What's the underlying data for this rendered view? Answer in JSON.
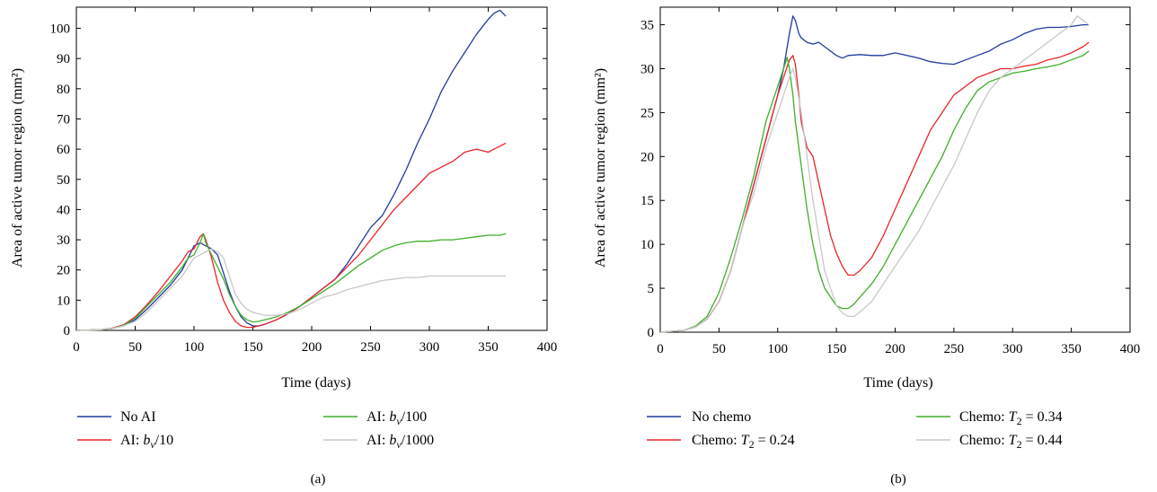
{
  "chart_data": [
    {
      "type": "line",
      "panel_label": "(a)",
      "xlabel": "Time (days)",
      "ylabel": "Area of active tumor region (mm²)",
      "xlim": [
        0,
        400
      ],
      "ylim": [
        0,
        107
      ],
      "xticks": [
        0,
        50,
        100,
        150,
        200,
        250,
        300,
        350,
        400
      ],
      "yticks": [
        0,
        10,
        20,
        30,
        40,
        50,
        60,
        70,
        80,
        90,
        100
      ],
      "grid": false,
      "legend_position": "bottom",
      "series": [
        {
          "name": "No AI",
          "color": "#1f3a9e",
          "x": [
            0,
            20,
            30,
            40,
            50,
            60,
            70,
            80,
            90,
            95,
            100,
            105,
            110,
            115,
            120,
            125,
            130,
            135,
            140,
            145,
            150,
            155,
            160,
            170,
            180,
            190,
            200,
            210,
            220,
            230,
            240,
            250,
            260,
            270,
            280,
            290,
            300,
            310,
            320,
            330,
            340,
            350,
            355,
            360,
            365
          ],
          "y": [
            0,
            0.2,
            0.6,
            1.5,
            3.5,
            7,
            11,
            15,
            20,
            24,
            28,
            29,
            28,
            27,
            25,
            19,
            13,
            8,
            4.5,
            2.5,
            1.5,
            1.5,
            2,
            3.5,
            5.5,
            8,
            11,
            14,
            17,
            22,
            28,
            34,
            38,
            45,
            53,
            62,
            70,
            79,
            86,
            92,
            98,
            103,
            105,
            106,
            104
          ]
        },
        {
          "name": "AI: b_v/10",
          "label_text": "AI: ",
          "label_sub": "/10",
          "color": "#e8252a",
          "x": [
            0,
            20,
            30,
            40,
            50,
            60,
            70,
            80,
            90,
            95,
            100,
            105,
            108,
            110,
            115,
            120,
            125,
            130,
            135,
            140,
            145,
            150,
            155,
            160,
            170,
            180,
            190,
            200,
            210,
            220,
            230,
            240,
            250,
            260,
            270,
            280,
            290,
            300,
            310,
            320,
            330,
            340,
            350,
            355,
            360,
            365
          ],
          "y": [
            0,
            0.2,
            0.7,
            1.8,
            4.5,
            8.5,
            13,
            18,
            23,
            26,
            27,
            31,
            32,
            30,
            24,
            16,
            10,
            6,
            3,
            1.5,
            1,
            1,
            1.5,
            2,
            3.5,
            5.5,
            8,
            11,
            14,
            17,
            21,
            25,
            30,
            35,
            40,
            44,
            48,
            52,
            54,
            56,
            59,
            60,
            59,
            60,
            61,
            62
          ]
        },
        {
          "name": "AI: b_v/100",
          "label_text": "AI: ",
          "label_sub": "/100",
          "color": "#3fae2a",
          "x": [
            0,
            20,
            30,
            40,
            50,
            60,
            70,
            80,
            90,
            95,
            100,
            105,
            108,
            110,
            115,
            120,
            125,
            130,
            135,
            140,
            145,
            150,
            155,
            160,
            170,
            180,
            190,
            200,
            210,
            220,
            230,
            240,
            250,
            260,
            270,
            280,
            290,
            300,
            310,
            320,
            330,
            340,
            350,
            360,
            365
          ],
          "y": [
            0,
            0.2,
            0.6,
            1.6,
            4,
            8,
            12,
            16,
            21,
            24,
            25,
            29,
            32,
            29,
            25,
            21,
            17,
            12,
            8,
            5,
            3.5,
            2.8,
            3,
            3.5,
            4.5,
            6,
            8,
            10.5,
            13,
            15.5,
            18.5,
            21.5,
            24,
            26.5,
            28,
            29,
            29.5,
            29.5,
            30,
            30,
            30.5,
            31,
            31.5,
            31.5,
            32
          ]
        },
        {
          "name": "AI: b_v/1000",
          "label_text": "AI: ",
          "label_sub": "/1000",
          "color": "#c8c8c8",
          "x": [
            0,
            20,
            30,
            40,
            50,
            60,
            70,
            80,
            90,
            95,
            100,
            105,
            110,
            115,
            120,
            125,
            130,
            135,
            140,
            145,
            150,
            155,
            160,
            170,
            180,
            190,
            200,
            210,
            220,
            230,
            240,
            250,
            260,
            270,
            280,
            290,
            300,
            310,
            320,
            330,
            340,
            350,
            360,
            365
          ],
          "y": [
            0,
            0.2,
            0.6,
            1.5,
            3,
            6,
            10,
            14,
            18,
            21,
            24,
            25,
            26,
            27,
            26,
            24,
            18,
            12,
            9,
            7,
            6,
            5.5,
            5,
            5,
            5.5,
            7,
            9,
            11,
            12,
            13.5,
            14.5,
            15.5,
            16.5,
            17,
            17.5,
            17.5,
            18,
            18,
            18,
            18,
            18,
            18,
            18,
            18
          ]
        }
      ]
    },
    {
      "type": "line",
      "panel_label": "(b)",
      "xlabel": "Time (days)",
      "ylabel": "Area of active tumor region (mm²)",
      "xlim": [
        0,
        400
      ],
      "ylim": [
        0,
        37
      ],
      "xticks": [
        0,
        50,
        100,
        150,
        200,
        250,
        300,
        350,
        400
      ],
      "yticks": [
        0,
        5,
        10,
        15,
        20,
        25,
        30,
        35
      ],
      "grid": false,
      "legend_position": "bottom",
      "series": [
        {
          "name": "No chemo",
          "color": "#1f3a9e",
          "x": [
            0,
            20,
            30,
            40,
            50,
            60,
            70,
            80,
            90,
            100,
            105,
            110,
            113,
            115,
            118,
            120,
            125,
            130,
            135,
            140,
            145,
            150,
            155,
            160,
            170,
            180,
            190,
            200,
            210,
            220,
            230,
            240,
            250,
            260,
            270,
            280,
            290,
            300,
            310,
            320,
            330,
            340,
            350,
            360,
            365
          ],
          "y": [
            0,
            0.2,
            0.6,
            1.5,
            3.5,
            7,
            12,
            17,
            22,
            27,
            30,
            34,
            36,
            35.5,
            34,
            33.5,
            33,
            32.8,
            33,
            32.5,
            32,
            31.5,
            31.2,
            31.5,
            31.6,
            31.5,
            31.5,
            31.8,
            31.5,
            31.2,
            30.8,
            30.6,
            30.5,
            31,
            31.5,
            32,
            32.8,
            33.3,
            34,
            34.5,
            34.7,
            34.7,
            34.8,
            35,
            35
          ]
        },
        {
          "name": "Chemo: T_2 = 0.24",
          "label_text": "Chemo: ",
          "label_tail": " = 0.24",
          "color": "#e8252a",
          "x": [
            0,
            20,
            30,
            40,
            50,
            60,
            70,
            80,
            90,
            100,
            105,
            110,
            113,
            115,
            118,
            120,
            125,
            130,
            135,
            140,
            145,
            150,
            155,
            160,
            165,
            170,
            180,
            190,
            200,
            210,
            220,
            230,
            240,
            250,
            260,
            270,
            280,
            290,
            300,
            310,
            320,
            330,
            340,
            350,
            360,
            365
          ],
          "y": [
            0,
            0.2,
            0.6,
            1.5,
            3.5,
            7,
            12,
            17,
            22,
            27,
            29,
            31,
            31.5,
            30.5,
            27,
            24,
            21,
            20,
            17,
            14,
            11,
            9,
            7.5,
            6.5,
            6.5,
            7,
            8.5,
            11,
            14,
            17,
            20,
            23,
            25,
            27,
            28,
            29,
            29.5,
            30,
            30,
            30.3,
            30.5,
            31,
            31.3,
            31.8,
            32.5,
            33
          ]
        },
        {
          "name": "Chemo: T_2 = 0.34",
          "label_text": "Chemo: ",
          "label_tail": " = 0.34",
          "color": "#3fae2a",
          "x": [
            0,
            20,
            30,
            40,
            50,
            60,
            70,
            80,
            90,
            100,
            105,
            108,
            110,
            113,
            115,
            120,
            125,
            130,
            135,
            140,
            145,
            150,
            155,
            160,
            165,
            170,
            180,
            190,
            200,
            210,
            220,
            230,
            240,
            250,
            260,
            270,
            280,
            290,
            300,
            310,
            320,
            330,
            340,
            350,
            360,
            365
          ],
          "y": [
            0,
            0.2,
            0.7,
            1.8,
            4.5,
            8.5,
            13,
            18,
            24,
            28,
            30,
            31.3,
            30,
            27,
            24,
            19,
            14,
            10,
            7,
            5,
            4,
            3,
            2.7,
            2.7,
            3.2,
            4,
            5.5,
            7.5,
            10,
            12.5,
            15,
            17.5,
            20,
            23,
            25.5,
            27.5,
            28.5,
            29,
            29.5,
            29.7,
            30,
            30.2,
            30.5,
            31,
            31.5,
            32
          ]
        },
        {
          "name": "Chemo: T_2 = 0.44",
          "label_text": "Chemo: ",
          "label_tail": " = 0.44",
          "color": "#c8c8c8",
          "x": [
            0,
            20,
            30,
            40,
            50,
            60,
            70,
            80,
            90,
            100,
            105,
            110,
            113,
            115,
            120,
            125,
            130,
            135,
            140,
            145,
            150,
            155,
            160,
            165,
            170,
            180,
            190,
            200,
            210,
            220,
            230,
            240,
            250,
            260,
            270,
            280,
            290,
            300,
            310,
            320,
            330,
            340,
            350,
            355,
            360,
            365
          ],
          "y": [
            0,
            0.2,
            0.6,
            1.5,
            3.5,
            7,
            12,
            16,
            21,
            25,
            27,
            29,
            30,
            29,
            25,
            20,
            15,
            11,
            7,
            5,
            3,
            2.2,
            1.8,
            1.8,
            2.3,
            3.5,
            5.5,
            7.5,
            9.5,
            11.5,
            14,
            16.5,
            19,
            22,
            25,
            27.5,
            29,
            30,
            31,
            32,
            33,
            34,
            35,
            36,
            35.5,
            35
          ]
        }
      ]
    }
  ]
}
